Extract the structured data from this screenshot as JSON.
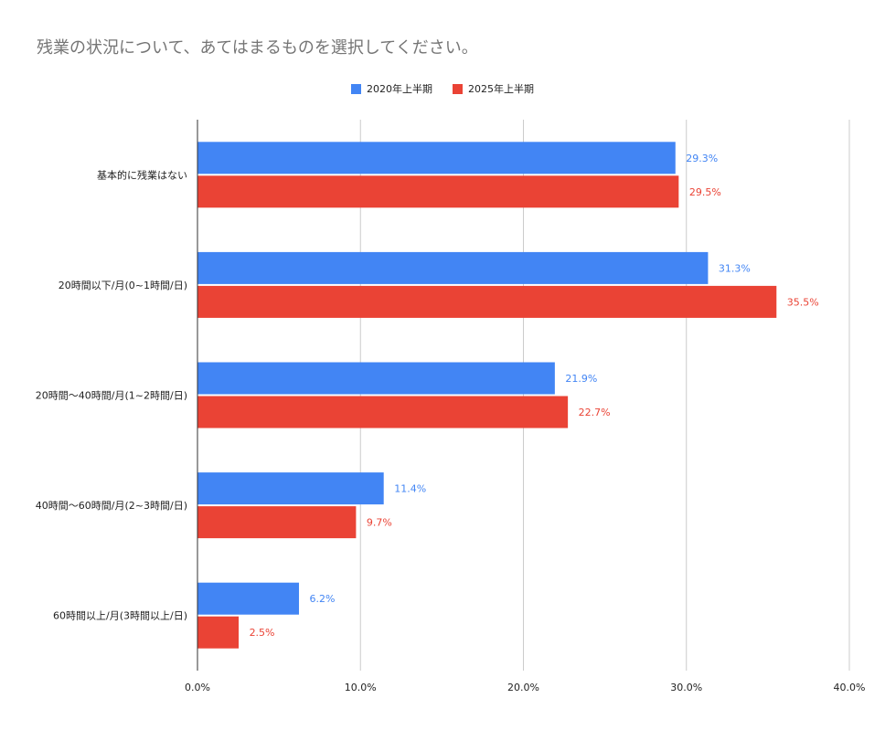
{
  "chart_data": {
    "type": "bar",
    "orientation": "horizontal",
    "title": "残業の状況について、あてはまるものを選択してください。",
    "categories": [
      "基本的に残業はない",
      "20時間以下/月(0~1時間/日)",
      "20時間〜40時間/月(1~2時間/日)",
      "40時間〜60時間/月(2~3時間/日)",
      "60時間以上/月(3時間以上/日)"
    ],
    "series": [
      {
        "name": "2020年上半期",
        "color": "#4285f4",
        "values": [
          29.3,
          31.3,
          21.9,
          11.4,
          6.2
        ],
        "labels": [
          "29.3%",
          "31.3%",
          "21.9%",
          "11.4%",
          "6.2%"
        ]
      },
      {
        "name": "2025年上半期",
        "color": "#ea4335",
        "values": [
          29.5,
          35.5,
          22.7,
          9.7,
          2.5
        ],
        "labels": [
          "29.5%",
          "35.5%",
          "22.7%",
          "9.7%",
          "2.5%"
        ]
      }
    ],
    "xlim": [
      0,
      40
    ],
    "x_ticks": [
      "0.0%",
      "10.0%",
      "20.0%",
      "30.0%",
      "40.0%"
    ],
    "grid": true,
    "legend_position": "top-center"
  }
}
